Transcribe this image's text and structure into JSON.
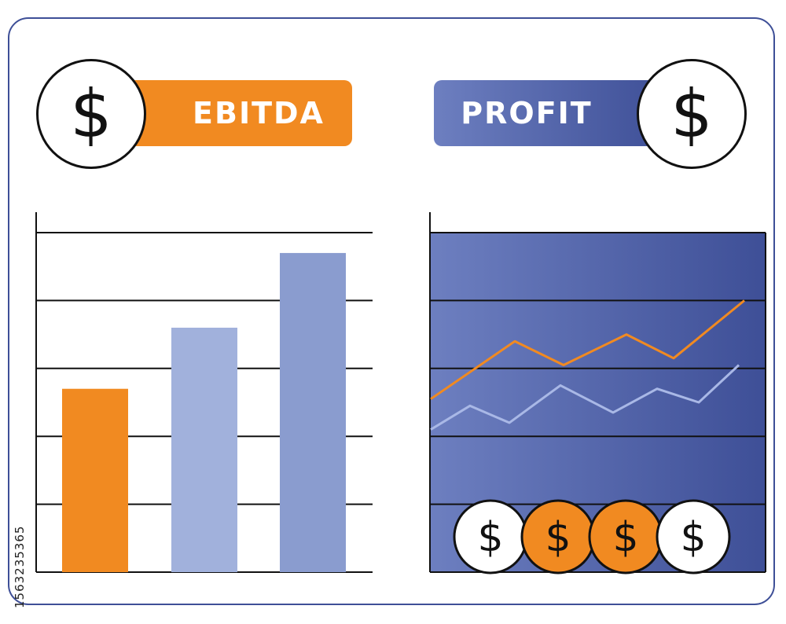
{
  "labels": {
    "ebitda": "EBITDA",
    "profit": "PROFIT",
    "coin_symbol": "$"
  },
  "watermark": "1563235365",
  "colors": {
    "orange": "#f18a21",
    "light_blue": "#a1b1dc",
    "mid_blue": "#8a9ccf",
    "dark_blue": "#3e4f97",
    "line_light": "#a9b8e6"
  },
  "chart_data": [
    {
      "type": "bar",
      "title": "EBITDA",
      "categories": [
        "",
        "",
        ""
      ],
      "values": [
        2.7,
        3.6,
        4.7
      ],
      "bar_colors": [
        "#f18a21",
        "#a1b1dc",
        "#8a9ccf"
      ],
      "ylim": [
        0,
        5
      ],
      "grid": true
    },
    {
      "type": "line",
      "title": "PROFIT",
      "x": [
        0,
        1,
        2,
        3,
        4,
        5,
        6
      ],
      "series": [
        {
          "values": [
            2.55,
            null,
            3.4,
            3.05,
            3.5,
            3.15,
            4.0
          ],
          "color": "#f18a21"
        },
        {
          "values": [
            2.1,
            2.45,
            2.2,
            2.75,
            2.35,
            2.7,
            2.5
          ],
          "color": "#a9b8e6"
        }
      ],
      "ylim": [
        0,
        5
      ],
      "grid": true,
      "coins": [
        {
          "symbol": "$",
          "fill": "#ffffff"
        },
        {
          "symbol": "$",
          "fill": "#f18a21"
        },
        {
          "symbol": "$",
          "fill": "#f18a21"
        },
        {
          "symbol": "$",
          "fill": "#ffffff"
        }
      ]
    }
  ]
}
